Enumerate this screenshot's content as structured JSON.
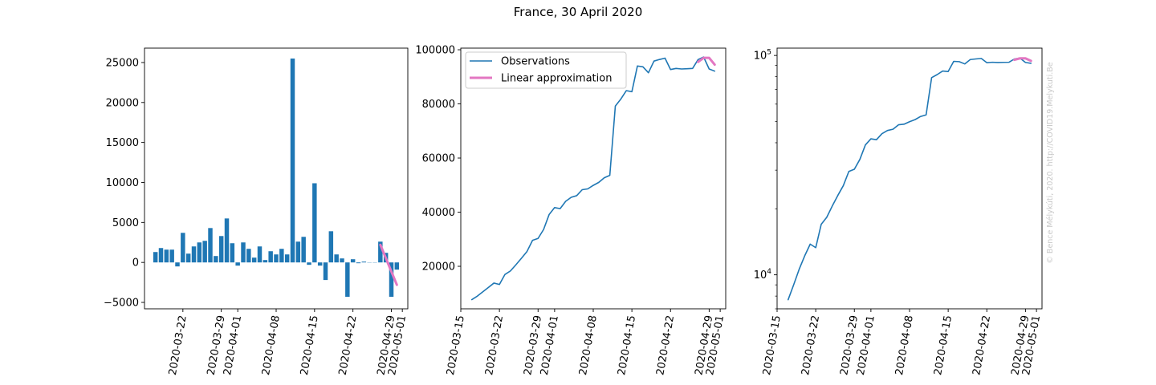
{
  "figure": {
    "title": "France, 30 April 2020",
    "watermark": "© Bence Mélykúti, 2020. http://COVID19.Melykuti.Be",
    "colors": {
      "series": "#1f77b4",
      "approximation": "#e377c2",
      "axis": "#000000",
      "watermark": "#c8c8c8"
    }
  },
  "chart_data": [
    {
      "type": "bar",
      "panel": "daily-change",
      "title": "",
      "xlabel": "",
      "ylabel": "",
      "x_is_date": true,
      "xlim": [
        "2020-03-15",
        "2020-05-02"
      ],
      "xticks": [
        "2020-03-22",
        "2020-03-29",
        "2020-04-01",
        "2020-04-08",
        "2020-04-15",
        "2020-04-22",
        "2020-04-29",
        "2020-05-01"
      ],
      "ylim": [
        -5800,
        26800
      ],
      "yticks": [
        -5000,
        0,
        5000,
        10000,
        15000,
        20000,
        25000
      ],
      "ytick_labels": [
        "−5000",
        "0",
        "5000",
        "10000",
        "15000",
        "20000",
        "25000"
      ],
      "grid": false,
      "dates": [
        "2020-03-17",
        "2020-03-18",
        "2020-03-19",
        "2020-03-20",
        "2020-03-21",
        "2020-03-22",
        "2020-03-23",
        "2020-03-24",
        "2020-03-25",
        "2020-03-26",
        "2020-03-27",
        "2020-03-28",
        "2020-03-29",
        "2020-03-30",
        "2020-03-31",
        "2020-04-01",
        "2020-04-02",
        "2020-04-03",
        "2020-04-04",
        "2020-04-05",
        "2020-04-06",
        "2020-04-07",
        "2020-04-08",
        "2020-04-09",
        "2020-04-10",
        "2020-04-11",
        "2020-04-12",
        "2020-04-13",
        "2020-04-14",
        "2020-04-15",
        "2020-04-16",
        "2020-04-17",
        "2020-04-18",
        "2020-04-19",
        "2020-04-20",
        "2020-04-21",
        "2020-04-22",
        "2020-04-23",
        "2020-04-24",
        "2020-04-25",
        "2020-04-26",
        "2020-04-27",
        "2020-04-28",
        "2020-04-29",
        "2020-04-30"
      ],
      "values": [
        1300,
        1800,
        1600,
        1600,
        -500,
        3700,
        1100,
        2000,
        2500,
        2700,
        4300,
        800,
        3300,
        5500,
        2400,
        -400,
        2500,
        1700,
        600,
        2000,
        300,
        1400,
        1000,
        1700,
        1000,
        25500,
        2600,
        3200,
        -300,
        9900,
        -400,
        -2200,
        3900,
        1000,
        500,
        -4300,
        400,
        -100,
        100,
        0,
        0,
        2600,
        1200,
        -4300,
        -900
      ],
      "series": [
        {
          "name": "",
          "kind": "line",
          "x": [
            "2020-04-27",
            "2020-04-30"
          ],
          "values": [
            2200,
            -2800
          ]
        }
      ]
    },
    {
      "type": "line",
      "panel": "cumulative-linear",
      "title": "",
      "xlabel": "",
      "ylabel": "",
      "x_is_date": true,
      "xlim": [
        "2020-03-15",
        "2020-05-02"
      ],
      "xticks": [
        "2020-03-15",
        "2020-03-22",
        "2020-03-29",
        "2020-04-01",
        "2020-04-08",
        "2020-04-15",
        "2020-04-22",
        "2020-04-29",
        "2020-05-01"
      ],
      "ylim": [
        4300,
        100600
      ],
      "yticks": [
        20000,
        40000,
        60000,
        80000,
        100000
      ],
      "ytick_labels": [
        "20000",
        "40000",
        "60000",
        "80000",
        "100000"
      ],
      "grid": false,
      "legend": "top-left",
      "series": [
        {
          "name": "Observations",
          "x": [
            "2020-03-17",
            "2020-03-18",
            "2020-03-19",
            "2020-03-20",
            "2020-03-21",
            "2020-03-22",
            "2020-03-23",
            "2020-03-24",
            "2020-03-25",
            "2020-03-26",
            "2020-03-27",
            "2020-03-28",
            "2020-03-29",
            "2020-03-30",
            "2020-03-31",
            "2020-04-01",
            "2020-04-02",
            "2020-04-03",
            "2020-04-04",
            "2020-04-05",
            "2020-04-06",
            "2020-04-07",
            "2020-04-08",
            "2020-04-09",
            "2020-04-10",
            "2020-04-11",
            "2020-04-12",
            "2020-04-13",
            "2020-04-14",
            "2020-04-15",
            "2020-04-16",
            "2020-04-17",
            "2020-04-18",
            "2020-04-19",
            "2020-04-20",
            "2020-04-21",
            "2020-04-22",
            "2020-04-23",
            "2020-04-24",
            "2020-04-25",
            "2020-04-26",
            "2020-04-27",
            "2020-04-28",
            "2020-04-29",
            "2020-04-30"
          ],
          "values": [
            7700,
            9000,
            10600,
            12200,
            13800,
            13300,
            17000,
            18300,
            20600,
            23000,
            25500,
            29600,
            30300,
            33600,
            39100,
            41700,
            41300,
            44000,
            45500,
            46100,
            48300,
            48600,
            49900,
            51000,
            52700,
            53600,
            79200,
            81800,
            84900,
            84500,
            94000,
            93700,
            91500,
            95800,
            96400,
            96900,
            92700,
            93100,
            92900,
            93000,
            93100,
            96400,
            97300,
            92900,
            92100
          ]
        },
        {
          "name": "Linear approximation",
          "x": [
            "2020-04-27",
            "2020-04-28",
            "2020-04-29",
            "2020-04-30"
          ],
          "values": [
            95500,
            97000,
            97000,
            94500
          ]
        }
      ]
    },
    {
      "type": "line",
      "panel": "cumulative-log",
      "title": "",
      "xlabel": "",
      "ylabel": "",
      "x_is_date": true,
      "xlim": [
        "2020-03-15",
        "2020-05-02"
      ],
      "xticks": [
        "2020-03-15",
        "2020-03-22",
        "2020-03-29",
        "2020-04-01",
        "2020-04-08",
        "2020-04-15",
        "2020-04-22",
        "2020-04-29",
        "2020-05-01"
      ],
      "yscale": "log",
      "ylim": [
        7000,
        108000
      ],
      "yticks": [
        10000,
        100000
      ],
      "ytick_labels": [
        {
          "base": "10",
          "exp": "4"
        },
        {
          "base": "10",
          "exp": "5"
        }
      ],
      "grid": false,
      "series": [
        {
          "name": "Observations",
          "x": [
            "2020-03-17",
            "2020-03-18",
            "2020-03-19",
            "2020-03-20",
            "2020-03-21",
            "2020-03-22",
            "2020-03-23",
            "2020-03-24",
            "2020-03-25",
            "2020-03-26",
            "2020-03-27",
            "2020-03-28",
            "2020-03-29",
            "2020-03-30",
            "2020-03-31",
            "2020-04-01",
            "2020-04-02",
            "2020-04-03",
            "2020-04-04",
            "2020-04-05",
            "2020-04-06",
            "2020-04-07",
            "2020-04-08",
            "2020-04-09",
            "2020-04-10",
            "2020-04-11",
            "2020-04-12",
            "2020-04-13",
            "2020-04-14",
            "2020-04-15",
            "2020-04-16",
            "2020-04-17",
            "2020-04-18",
            "2020-04-19",
            "2020-04-20",
            "2020-04-21",
            "2020-04-22",
            "2020-04-23",
            "2020-04-24",
            "2020-04-25",
            "2020-04-26",
            "2020-04-27",
            "2020-04-28",
            "2020-04-29",
            "2020-04-30"
          ],
          "values": [
            7700,
            9000,
            10600,
            12200,
            13800,
            13300,
            17000,
            18300,
            20600,
            23000,
            25500,
            29600,
            30300,
            33600,
            39100,
            41700,
            41300,
            44000,
            45500,
            46100,
            48300,
            48600,
            49900,
            51000,
            52700,
            53600,
            79200,
            81800,
            84900,
            84500,
            94000,
            93700,
            91500,
            95800,
            96400,
            96900,
            92700,
            93100,
            92900,
            93000,
            93100,
            96400,
            97300,
            92900,
            92100
          ]
        },
        {
          "name": "",
          "x": [
            "2020-04-27",
            "2020-04-28",
            "2020-04-29",
            "2020-04-30"
          ],
          "values": [
            95500,
            97000,
            97000,
            94500
          ]
        }
      ]
    }
  ]
}
